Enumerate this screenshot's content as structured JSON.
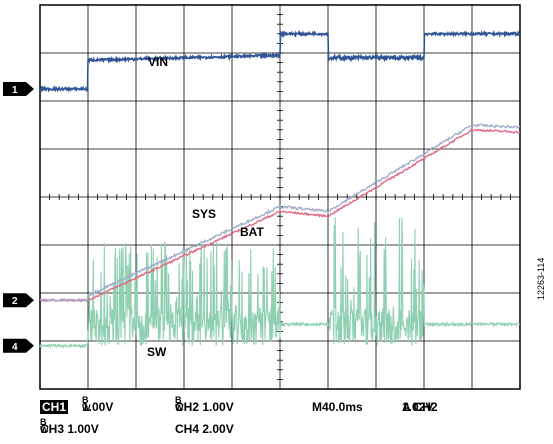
{
  "chart_data": {
    "type": "line",
    "title": "",
    "xlabel": "",
    "ylabel": "",
    "x_range_divisions": [
      0,
      10
    ],
    "y_range_divisions": [
      0,
      8
    ],
    "grid": true,
    "series": [
      {
        "name": "VIN",
        "color": "#2f5597",
        "x": [
          0,
          1.0,
          1.02,
          5.0,
          5.02,
          6.0,
          6.02,
          8.0,
          8.02,
          10.0
        ],
        "y": [
          6.25,
          6.25,
          6.9,
          7.0,
          7.0,
          7.0,
          7.0,
          7.0,
          7.0,
          7.0
        ]
      }
    ],
    "trace_labels": {
      "vin": "VIN",
      "sys": "SYS",
      "bat": "BAT",
      "sw": "SW"
    },
    "channel_markers": [
      {
        "label": "1",
        "level": 6.25
      },
      {
        "label": "2",
        "level": 1.85
      },
      {
        "label": "4",
        "level": 0.9
      }
    ],
    "footer": {
      "ch1": "CH1",
      "ch1_scale": "1.00V",
      "bw1": "B",
      "bw1_sub": "W",
      "ch2_scale": "CH2  1.00V",
      "bw2": "B",
      "bw2_sub": "W",
      "timebase": "M40.0ms",
      "trigger": "A  CH2",
      "trigger_level": "1.02V",
      "ch3_scale": "CH3  1.00V",
      "bw3": "B",
      "bw3_sub": "W",
      "ch4_scale": "CH4  2.00V"
    },
    "figure_id": "12263-114"
  }
}
